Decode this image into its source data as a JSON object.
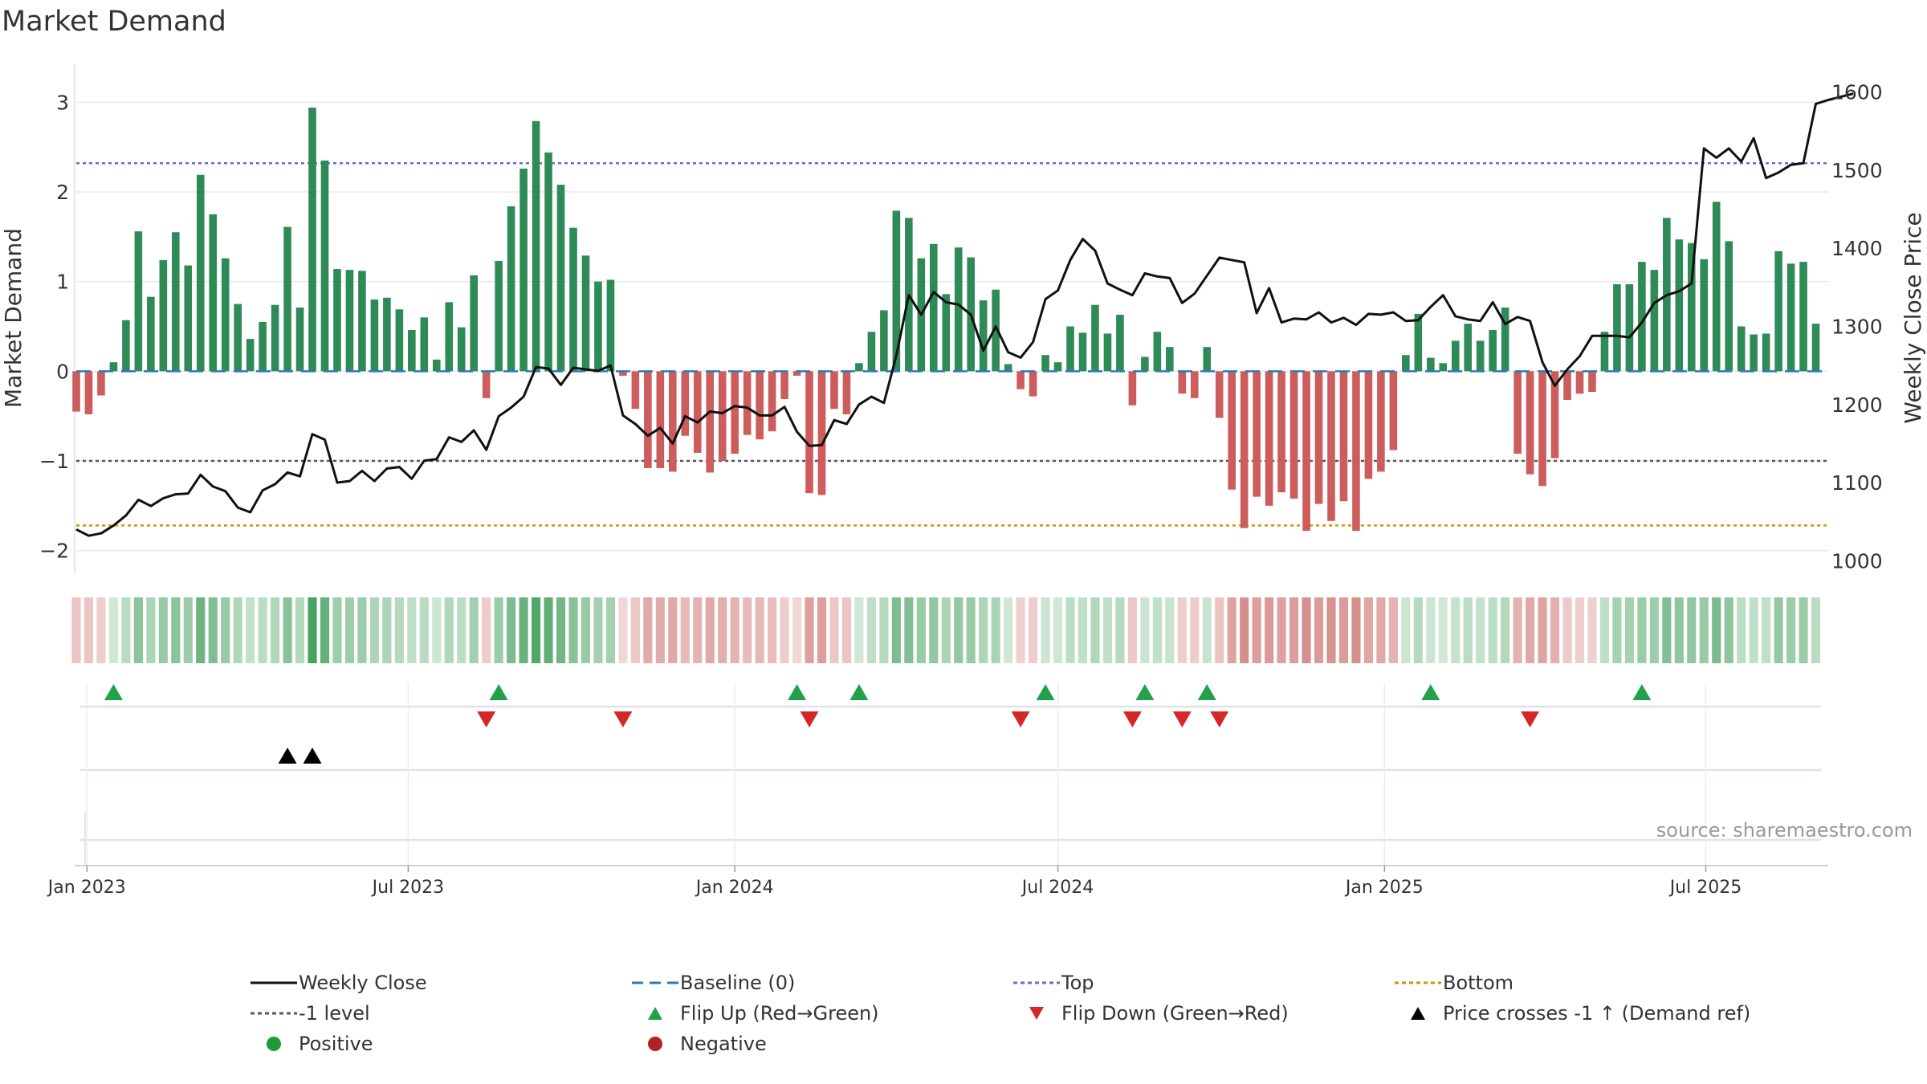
{
  "title": "Market Demand",
  "source": "source: sharemaestro.com",
  "chart_data": {
    "type": "bar",
    "title": "Market Demand",
    "ylabel_left": "Market Demand",
    "ylabel_right": "Weekly Close Price",
    "ylim_left": [
      -2.2,
      3.2
    ],
    "ylim_right": [
      990,
      1610
    ],
    "yticks_left": [
      -2,
      -1,
      0,
      1,
      2,
      3
    ],
    "ytick_labels_left": [
      "−2",
      "−1",
      "0",
      "1",
      "2",
      "3"
    ],
    "yticks_right": [
      1000,
      1100,
      1200,
      1300,
      1400,
      1500,
      1600
    ],
    "x_start": "2022-12-26",
    "x_end": "2025-09-08",
    "x_ticks": [
      {
        "date": "2023-01-01",
        "label": "Jan 2023"
      },
      {
        "date": "2023-07-01",
        "label": "Jul 2023"
      },
      {
        "date": "2024-01-01",
        "label": "Jan 2024"
      },
      {
        "date": "2024-07-01",
        "label": "Jul 2024"
      },
      {
        "date": "2025-01-01",
        "label": "Jan 2025"
      },
      {
        "date": "2025-07-01",
        "label": "Jul 2025"
      }
    ],
    "first_week": "2022-12-26",
    "week_step_days": 7,
    "reference_lines": {
      "top": 2.32,
      "minus_one": -1,
      "bottom": -1.72,
      "baseline": 0
    },
    "demand": [
      -0.45,
      -0.48,
      -0.27,
      0.1,
      0.57,
      1.56,
      0.83,
      1.24,
      1.55,
      1.18,
      2.19,
      1.75,
      1.26,
      0.75,
      0.36,
      0.55,
      0.74,
      1.61,
      0.71,
      2.94,
      2.35,
      1.14,
      1.13,
      1.12,
      0.8,
      0.82,
      0.69,
      0.46,
      0.6,
      0.13,
      0.77,
      0.49,
      1.07,
      -0.3,
      1.23,
      1.84,
      2.26,
      2.79,
      2.44,
      2.08,
      1.6,
      1.29,
      1.0,
      1.02,
      -0.05,
      -0.42,
      -1.08,
      -1.08,
      -1.12,
      -0.72,
      -0.91,
      -1.13,
      -1.0,
      -0.92,
      -0.71,
      -0.76,
      -0.67,
      -0.31,
      -0.05,
      -1.36,
      -1.38,
      -0.42,
      -0.48,
      0.09,
      0.44,
      0.68,
      1.79,
      1.71,
      1.26,
      1.42,
      0.86,
      1.38,
      1.27,
      0.79,
      0.91,
      0.08,
      -0.2,
      -0.28,
      0.18,
      0.1,
      0.5,
      0.43,
      0.74,
      0.42,
      0.63,
      -0.38,
      0.16,
      0.44,
      0.27,
      -0.25,
      -0.3,
      0.27,
      -0.52,
      -1.32,
      -1.75,
      -1.4,
      -1.5,
      -1.35,
      -1.42,
      -1.78,
      -1.48,
      -1.67,
      -1.45,
      -1.78,
      -1.2,
      -1.12,
      -0.88,
      0.18,
      0.64,
      0.15,
      0.09,
      0.34,
      0.53,
      0.34,
      0.46,
      0.71,
      -0.92,
      -1.15,
      -1.28,
      -0.97,
      -0.32,
      -0.25,
      -0.23,
      0.44,
      0.97,
      0.97,
      1.22,
      1.13,
      1.71,
      1.47,
      1.43,
      1.25,
      1.89,
      1.45,
      0.5,
      0.41,
      0.42,
      1.34,
      1.2,
      1.22,
      0.53
    ],
    "weekly_close": [
      1040,
      1032,
      1035,
      1045,
      1058,
      1078,
      1070,
      1080,
      1085,
      1086,
      1110,
      1095,
      1089,
      1068,
      1062,
      1090,
      1098,
      1113,
      1108,
      1162,
      1155,
      1100,
      1102,
      1115,
      1102,
      1118,
      1120,
      1105,
      1128,
      1130,
      1158,
      1152,
      1167,
      1142,
      1185,
      1196,
      1210,
      1248,
      1246,
      1225,
      1247,
      1245,
      1243,
      1250,
      1186,
      1175,
      1160,
      1170,
      1150,
      1185,
      1177,
      1191,
      1189,
      1198,
      1196,
      1186,
      1186,
      1197,
      1165,
      1147,
      1148,
      1180,
      1175,
      1200,
      1210,
      1202,
      1263,
      1340,
      1315,
      1344,
      1331,
      1328,
      1315,
      1269,
      1300,
      1267,
      1260,
      1280,
      1335,
      1346,
      1385,
      1412,
      1397,
      1355,
      1347,
      1340,
      1368,
      1364,
      1362,
      1330,
      1342,
      1365,
      1388,
      1385,
      1382,
      1317,
      1349,
      1305,
      1310,
      1309,
      1318,
      1305,
      1311,
      1302,
      1316,
      1315,
      1318,
      1307,
      1308,
      1325,
      1340,
      1313,
      1309,
      1307,
      1331,
      1303,
      1312,
      1307,
      1254,
      1224,
      1245,
      1262,
      1288,
      1288,
      1288,
      1286,
      1305,
      1330,
      1340,
      1345,
      1355,
      1528,
      1516,
      1528,
      1511,
      1541,
      1490,
      1497,
      1507,
      1509,
      1585,
      1590,
      1594,
      1598
    ],
    "demand_series": [
      {
        "name": "Positive",
        "color": "#2e8b57"
      },
      {
        "name": "Negative",
        "color": "#cd5c5c"
      }
    ],
    "strip_colors": {
      "positive": "#3a9a55",
      "negative": "#c0504d"
    },
    "flip_up_weeks": [
      3,
      34,
      58,
      63,
      78,
      86,
      91,
      109,
      126
    ],
    "flip_down_weeks": [
      33,
      44,
      59,
      76,
      85,
      89,
      92,
      117
    ],
    "price_cross_weeks": [
      17,
      19
    ],
    "legend": [
      {
        "label": "Weekly Close",
        "marker": "solid-line",
        "color": "#111111"
      },
      {
        "label": "Baseline (0)",
        "marker": "dash-line",
        "color": "#2b7bb9"
      },
      {
        "label": "Top",
        "marker": "dot-line",
        "color": "#6a6acf"
      },
      {
        "label": "Bottom",
        "marker": "dot-line",
        "color": "#d4900a"
      },
      {
        "label": "-1 level",
        "marker": "dot-line",
        "color": "#555566"
      },
      {
        "label": "Flip Up (Red→Green)",
        "marker": "triangle-up",
        "color": "#22a04a"
      },
      {
        "label": "Flip Down (Green→Red)",
        "marker": "triangle-down",
        "color": "#d62728"
      },
      {
        "label": "Price crosses -1 ↑ (Demand ref)",
        "marker": "triangle-up",
        "color": "#000000"
      },
      {
        "label": "Positive",
        "marker": "circle",
        "color": "#1f9a3a"
      },
      {
        "label": "Negative",
        "marker": "circle",
        "color": "#b22222"
      }
    ]
  }
}
